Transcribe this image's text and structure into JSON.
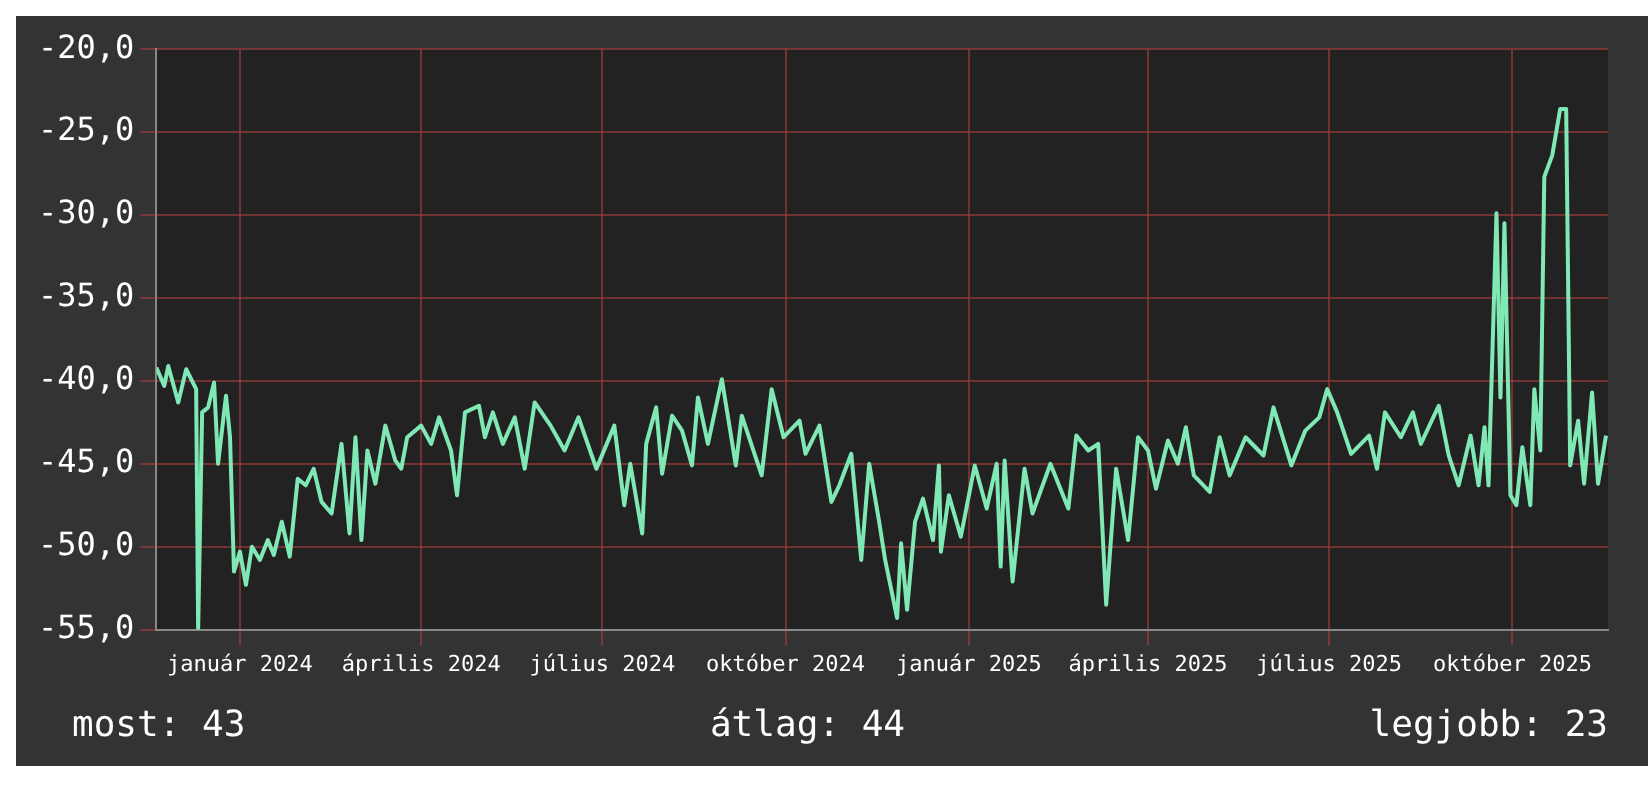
{
  "chart_data": {
    "type": "line",
    "x": [
      "2023-11-20",
      "2023-11-24",
      "2023-11-26",
      "2023-12-01",
      "2023-12-05",
      "2023-12-10",
      "2023-12-11",
      "2023-12-13",
      "2023-12-16",
      "2023-12-19",
      "2023-12-21",
      "2023-12-25",
      "2023-12-27",
      "2023-12-29",
      "2024-01-01",
      "2024-01-04",
      "2024-01-07",
      "2024-01-11",
      "2024-01-15",
      "2024-01-18",
      "2024-01-22",
      "2024-01-26",
      "2024-01-30",
      "2024-02-03",
      "2024-02-07",
      "2024-02-11",
      "2024-02-16",
      "2024-02-21",
      "2024-02-25",
      "2024-02-28",
      "2024-03-02",
      "2024-03-05",
      "2024-03-09",
      "2024-03-14",
      "2024-03-19",
      "2024-03-22",
      "2024-03-25",
      "2024-04-01",
      "2024-04-06",
      "2024-04-10",
      "2024-04-16",
      "2024-04-19",
      "2024-04-23",
      "2024-04-30",
      "2024-05-03",
      "2024-05-07",
      "2024-05-12",
      "2024-05-18",
      "2024-05-23",
      "2024-05-28",
      "2024-06-05",
      "2024-06-12",
      "2024-06-19",
      "2024-06-28",
      "2024-07-07",
      "2024-07-12",
      "2024-07-15",
      "2024-07-21",
      "2024-07-23",
      "2024-07-28",
      "2024-07-31",
      "2024-08-05",
      "2024-08-10",
      "2024-08-15",
      "2024-08-18",
      "2024-08-23",
      "2024-08-30",
      "2024-09-06",
      "2024-09-09",
      "2024-09-19",
      "2024-09-24",
      "2024-09-30",
      "2024-10-08",
      "2024-10-11",
      "2024-10-18",
      "2024-10-24",
      "2024-10-28",
      "2024-11-03",
      "2024-11-08",
      "2024-11-12",
      "2024-11-17",
      "2024-11-20",
      "2024-11-26",
      "2024-11-28",
      "2024-12-01",
      "2024-12-05",
      "2024-12-09",
      "2024-12-14",
      "2024-12-17",
      "2024-12-18",
      "2024-12-22",
      "2024-12-28",
      "2025-01-04",
      "2025-01-10",
      "2025-01-15",
      "2025-01-17",
      "2025-01-19",
      "2025-01-23",
      "2025-01-29",
      "2025-02-02",
      "2025-02-11",
      "2025-02-16",
      "2025-02-20",
      "2025-02-24",
      "2025-03-02",
      "2025-03-07",
      "2025-03-11",
      "2025-03-16",
      "2025-03-22",
      "2025-03-27",
      "2025-04-01",
      "2025-04-05",
      "2025-04-11",
      "2025-04-16",
      "2025-04-20",
      "2025-04-24",
      "2025-05-02",
      "2025-05-07",
      "2025-05-12",
      "2025-05-20",
      "2025-05-29",
      "2025-06-03",
      "2025-06-12",
      "2025-06-19",
      "2025-06-26",
      "2025-06-30",
      "2025-07-05",
      "2025-07-12",
      "2025-07-21",
      "2025-07-25",
      "2025-07-29",
      "2025-08-06",
      "2025-08-12",
      "2025-08-16",
      "2025-08-25",
      "2025-08-30",
      "2025-09-04",
      "2025-09-10",
      "2025-09-14",
      "2025-09-17",
      "2025-09-19",
      "2025-09-23",
      "2025-09-25",
      "2025-09-27",
      "2025-09-30",
      "2025-10-03",
      "2025-10-06",
      "2025-10-10",
      "2025-10-12",
      "2025-10-15",
      "2025-10-17",
      "2025-10-21",
      "2025-10-25",
      "2025-10-28",
      "2025-10-30",
      "2025-11-03",
      "2025-11-06",
      "2025-11-10",
      "2025-11-13",
      "2025-11-17"
    ],
    "series": [
      {
        "color": "#7fe8b4",
        "values": [
          -39.2,
          -40.3,
          -39.1,
          -41.3,
          -39.3,
          -40.5,
          -55.0,
          -41.9,
          -41.6,
          -40.1,
          -45.0,
          -40.9,
          -43.4,
          -51.5,
          -50.3,
          -52.3,
          -50.0,
          -50.8,
          -49.6,
          -50.5,
          -48.5,
          -50.6,
          -45.9,
          -46.3,
          -45.3,
          -47.3,
          -48.0,
          -43.8,
          -49.2,
          -43.4,
          -49.6,
          -44.2,
          -46.2,
          -42.7,
          -44.8,
          -45.3,
          -43.4,
          -42.7,
          -43.8,
          -42.2,
          -44.2,
          -46.9,
          -41.9,
          -41.5,
          -43.4,
          -41.9,
          -43.8,
          -42.2,
          -45.3,
          -41.3,
          -42.7,
          -44.2,
          -42.2,
          -45.3,
          -42.7,
          -47.5,
          -45.0,
          -49.2,
          -43.8,
          -41.6,
          -45.6,
          -42.1,
          -43.0,
          -45.1,
          -41.0,
          -43.8,
          -39.9,
          -45.1,
          -42.1,
          -45.7,
          -40.5,
          -43.4,
          -42.4,
          -44.4,
          -42.7,
          -47.3,
          -46.3,
          -44.4,
          -50.8,
          -45.0,
          -48.5,
          -50.8,
          -54.3,
          -49.8,
          -53.8,
          -48.5,
          -47.1,
          -49.6,
          -45.1,
          -50.3,
          -46.9,
          -49.4,
          -45.1,
          -47.7,
          -45.0,
          -51.2,
          -44.8,
          -52.1,
          -45.3,
          -48.0,
          -45.0,
          -46.5,
          -47.7,
          -43.3,
          -44.2,
          -43.8,
          -53.5,
          -45.3,
          -49.6,
          -43.4,
          -44.2,
          -46.5,
          -43.6,
          -45.0,
          -42.8,
          -45.7,
          -46.7,
          -43.4,
          -45.7,
          -43.4,
          -44.5,
          -41.6,
          -45.1,
          -43.0,
          -42.2,
          -40.5,
          -41.9,
          -44.4,
          -43.3,
          -45.3,
          -41.9,
          -43.4,
          -41.9,
          -43.8,
          -41.5,
          -44.5,
          -46.3,
          -43.3,
          -46.3,
          -42.8,
          -46.3,
          -29.9,
          -41.0,
          -30.5,
          -46.9,
          -47.5,
          -44.0,
          -47.5,
          -40.5,
          -44.2,
          -27.7,
          -26.4,
          -23.6,
          -23.6,
          -45.1,
          -42.4,
          -46.2,
          -40.7,
          -46.2,
          -43.3
        ]
      }
    ],
    "xlim": [
      "2023-11-20",
      "2025-11-18"
    ],
    "xticks": [
      {
        "value": "2024-01-01",
        "label": "január 2024"
      },
      {
        "value": "2024-04-01",
        "label": "április 2024"
      },
      {
        "value": "2024-07-01",
        "label": "július 2024"
      },
      {
        "value": "2024-10-01",
        "label": "október 2024"
      },
      {
        "value": "2025-01-01",
        "label": "január 2025"
      },
      {
        "value": "2025-04-01",
        "label": "április 2025"
      },
      {
        "value": "2025-07-01",
        "label": "július 2025"
      },
      {
        "value": "2025-10-01",
        "label": "október 2025"
      }
    ],
    "ylim": [
      -55,
      -20
    ],
    "yticks": [
      {
        "value": -55,
        "label": "-55,0"
      },
      {
        "value": -50,
        "label": "-50,0"
      },
      {
        "value": -45,
        "label": "-45,0"
      },
      {
        "value": -40,
        "label": "-40,0"
      },
      {
        "value": -35,
        "label": "-35,0"
      },
      {
        "value": -30,
        "label": "-30,0"
      },
      {
        "value": -25,
        "label": "-25,0"
      },
      {
        "value": -20,
        "label": "-20,0"
      }
    ],
    "grid": true,
    "legend": false,
    "marker": "none",
    "line_style": "solid",
    "annotations": [
      "most: 43",
      "átlag: 44",
      "legjobb: 23"
    ]
  }
}
